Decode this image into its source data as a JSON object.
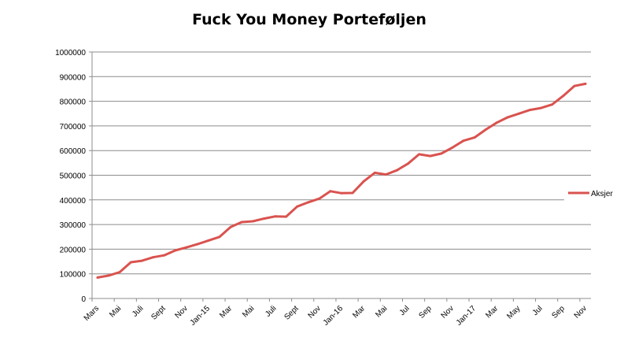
{
  "chart_data": {
    "type": "line",
    "title": "Fuck You Money Porteføljen",
    "xlabel": "",
    "ylabel": "",
    "ylim": [
      0,
      1000000
    ],
    "yticks": [
      0,
      100000,
      200000,
      300000,
      400000,
      500000,
      600000,
      700000,
      800000,
      900000,
      1000000
    ],
    "grid": true,
    "legend_position": "right",
    "x_tick_labels": [
      "Mars",
      "Mai",
      "Juli",
      "Sept",
      "Nov",
      "Jan-15",
      "Mar",
      "Mai",
      "Juli",
      "Sept",
      "Nov",
      "Jan-16",
      "Mar",
      "Mai",
      "Jul",
      "Sep",
      "Nov",
      "Jan-17",
      "Mar",
      "May",
      "Jul",
      "Sep",
      "Nov"
    ],
    "series": [
      {
        "name": "Aksjer",
        "color": "#d9534f",
        "values": [
          85000,
          93000,
          107000,
          147000,
          153000,
          167000,
          175000,
          195000,
          207000,
          220000,
          235000,
          250000,
          290000,
          310000,
          313000,
          324000,
          333000,
          332000,
          373000,
          390000,
          405000,
          435000,
          427000,
          428000,
          475000,
          510000,
          503000,
          520000,
          547000,
          585000,
          578000,
          588000,
          612000,
          640000,
          653000,
          685000,
          713000,
          735000,
          750000,
          765000,
          773000,
          787000,
          822000,
          862000,
          871000
        ]
      }
    ]
  }
}
